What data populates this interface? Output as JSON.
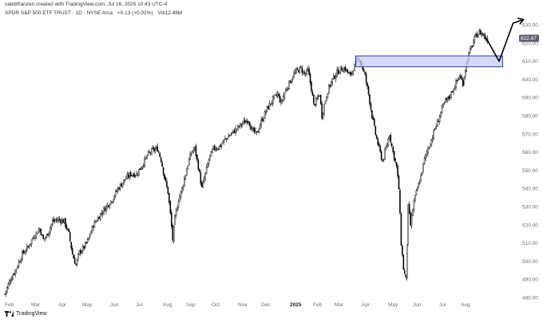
{
  "header": {
    "credit": "calebfranzen created with TradingView.com, Jul 16, 2025 10:43 UTC-4",
    "symbol": "SPDR S&P 500 ETF TRUST · 1D · NYSE Arca",
    "change": "+0.13 (+0.02%)",
    "volume": "Vol12.48M"
  },
  "brand": {
    "label": "TradingView",
    "icon": "tradingview-logo-icon"
  },
  "colors": {
    "candle": "#000000",
    "zone_fill": "#c9ccf3",
    "zone_stroke": "#2d37b8",
    "price_tag": "#5d606b",
    "arrow": "#000000"
  },
  "chart_data": {
    "type": "candlestick",
    "title": "SPDR S&P 500 ETF TRUST",
    "timeframe": "1D",
    "exchange": "NYSE Arca",
    "ylim": [
      476,
      634
    ],
    "y_ticks": [
      "630.00",
      "620.00",
      "610.00",
      "600.00",
      "590.00",
      "580.00",
      "570.00",
      "560.00",
      "550.00",
      "540.00",
      "530.00",
      "520.00",
      "510.00",
      "500.00",
      "490.00",
      "480.00"
    ],
    "x_ticks": [
      "Feb",
      "Mar",
      "Apr",
      "May",
      "Jun",
      "Jul",
      "Aug",
      "Sep",
      "Oct",
      "Nov",
      "Dec",
      "2025",
      "Feb",
      "Mar",
      "Apr",
      "May",
      "Jun",
      "Jul",
      "Aug"
    ],
    "x_ticks_bold": [
      "2025"
    ],
    "last_price": "622.67",
    "price_anchors": [
      {
        "t": 0,
        "p": 482
      },
      {
        "t": 4,
        "p": 489
      },
      {
        "t": 9,
        "p": 495
      },
      {
        "t": 15,
        "p": 504
      },
      {
        "t": 20,
        "p": 508
      },
      {
        "t": 25,
        "p": 514
      },
      {
        "t": 30,
        "p": 518
      },
      {
        "t": 33,
        "p": 512
      },
      {
        "t": 36,
        "p": 514
      },
      {
        "t": 41,
        "p": 522
      },
      {
        "t": 46,
        "p": 523
      },
      {
        "t": 51,
        "p": 522
      },
      {
        "t": 55,
        "p": 515
      },
      {
        "t": 58,
        "p": 504
      },
      {
        "t": 61,
        "p": 498
      },
      {
        "t": 64,
        "p": 505
      },
      {
        "t": 67,
        "p": 507
      },
      {
        "t": 71,
        "p": 511
      },
      {
        "t": 76,
        "p": 520
      },
      {
        "t": 82,
        "p": 526
      },
      {
        "t": 87,
        "p": 530
      },
      {
        "t": 92,
        "p": 534
      },
      {
        "t": 97,
        "p": 540
      },
      {
        "t": 103,
        "p": 545
      },
      {
        "t": 108,
        "p": 548
      },
      {
        "t": 113,
        "p": 548
      },
      {
        "t": 118,
        "p": 553
      },
      {
        "t": 123,
        "p": 559
      },
      {
        "t": 127,
        "p": 561
      },
      {
        "t": 131,
        "p": 562
      },
      {
        "t": 134,
        "p": 556
      },
      {
        "t": 137,
        "p": 546
      },
      {
        "t": 140,
        "p": 538
      },
      {
        "t": 142,
        "p": 526
      },
      {
        "t": 144,
        "p": 512
      },
      {
        "t": 146,
        "p": 524
      },
      {
        "t": 149,
        "p": 534
      },
      {
        "t": 152,
        "p": 540
      },
      {
        "t": 155,
        "p": 548
      },
      {
        "t": 158,
        "p": 556
      },
      {
        "t": 161,
        "p": 561
      },
      {
        "t": 163,
        "p": 562
      },
      {
        "t": 166,
        "p": 552
      },
      {
        "t": 169,
        "p": 540
      },
      {
        "t": 172,
        "p": 548
      },
      {
        "t": 175,
        "p": 556
      },
      {
        "t": 179,
        "p": 562
      },
      {
        "t": 184,
        "p": 563
      },
      {
        "t": 189,
        "p": 567
      },
      {
        "t": 194,
        "p": 570
      },
      {
        "t": 199,
        "p": 573
      },
      {
        "t": 204,
        "p": 576
      },
      {
        "t": 209,
        "p": 578
      },
      {
        "t": 212,
        "p": 572
      },
      {
        "t": 216,
        "p": 570
      },
      {
        "t": 220,
        "p": 577
      },
      {
        "t": 225,
        "p": 584
      },
      {
        "t": 230,
        "p": 589
      },
      {
        "t": 234,
        "p": 592
      },
      {
        "t": 237,
        "p": 587
      },
      {
        "t": 240,
        "p": 593
      },
      {
        "t": 244,
        "p": 598
      },
      {
        "t": 248,
        "p": 603
      },
      {
        "t": 251,
        "p": 605
      },
      {
        "t": 254,
        "p": 606
      },
      {
        "t": 256,
        "p": 604
      },
      {
        "t": 258,
        "p": 603
      },
      {
        "t": 260,
        "p": 605
      },
      {
        "t": 263,
        "p": 595
      },
      {
        "t": 265,
        "p": 586
      },
      {
        "t": 267,
        "p": 588
      },
      {
        "t": 270,
        "p": 592
      },
      {
        "t": 272,
        "p": 580
      },
      {
        "t": 274,
        "p": 586
      },
      {
        "t": 277,
        "p": 594
      },
      {
        "t": 281,
        "p": 600
      },
      {
        "t": 285,
        "p": 604
      },
      {
        "t": 289,
        "p": 606
      },
      {
        "t": 292,
        "p": 606
      },
      {
        "t": 296,
        "p": 602
      },
      {
        "t": 299,
        "p": 606
      },
      {
        "t": 302,
        "p": 610
      },
      {
        "t": 304,
        "p": 612
      },
      {
        "t": 306,
        "p": 608
      },
      {
        "t": 309,
        "p": 602
      },
      {
        "t": 312,
        "p": 592
      },
      {
        "t": 315,
        "p": 580
      },
      {
        "t": 318,
        "p": 570
      },
      {
        "t": 321,
        "p": 562
      },
      {
        "t": 324,
        "p": 555
      },
      {
        "t": 327,
        "p": 562
      },
      {
        "t": 330,
        "p": 570
      },
      {
        "t": 333,
        "p": 560
      },
      {
        "t": 336,
        "p": 552
      },
      {
        "t": 338,
        "p": 540
      },
      {
        "t": 340,
        "p": 510
      },
      {
        "t": 342,
        "p": 496
      },
      {
        "t": 344,
        "p": 490
      },
      {
        "t": 346,
        "p": 530
      },
      {
        "t": 348,
        "p": 520
      },
      {
        "t": 351,
        "p": 533
      },
      {
        "t": 354,
        "p": 540
      },
      {
        "t": 357,
        "p": 547
      },
      {
        "t": 360,
        "p": 556
      },
      {
        "t": 363,
        "p": 562
      },
      {
        "t": 366,
        "p": 567
      },
      {
        "t": 369,
        "p": 573
      },
      {
        "t": 372,
        "p": 578
      },
      {
        "t": 375,
        "p": 584
      },
      {
        "t": 378,
        "p": 588
      },
      {
        "t": 381,
        "p": 590
      },
      {
        "t": 384,
        "p": 594
      },
      {
        "t": 387,
        "p": 598
      },
      {
        "t": 390,
        "p": 602
      },
      {
        "t": 393,
        "p": 598
      },
      {
        "t": 395,
        "p": 606
      },
      {
        "t": 398,
        "p": 614
      },
      {
        "t": 401,
        "p": 619
      },
      {
        "t": 404,
        "p": 624
      },
      {
        "t": 407,
        "p": 626
      },
      {
        "t": 410,
        "p": 625
      },
      {
        "t": 413,
        "p": 622
      },
      {
        "t": 414,
        "p": 622.67
      }
    ],
    "annotations": {
      "zone": {
        "t_start": 301,
        "t_end": 427,
        "p_low": 607,
        "p_high": 613
      },
      "projection_path": [
        {
          "t": 413,
          "p": 622.7
        },
        {
          "t": 424,
          "p": 610
        },
        {
          "t": 436,
          "p": 631
        },
        {
          "t": 445,
          "p": 633
        }
      ]
    }
  }
}
